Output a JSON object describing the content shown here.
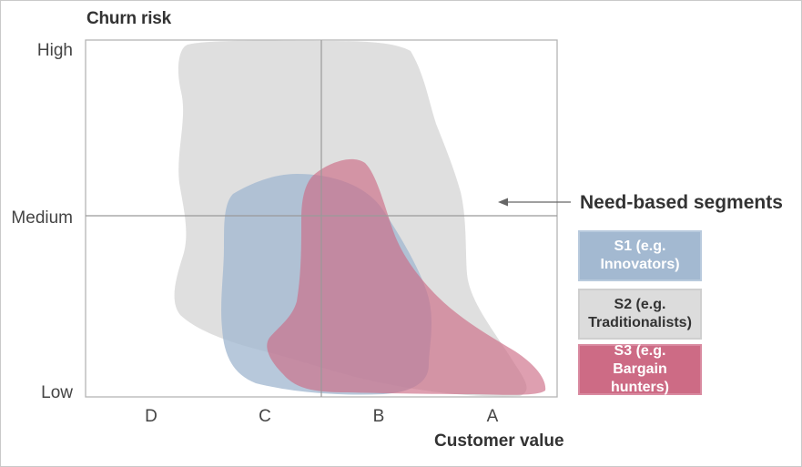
{
  "diagram": {
    "y_axis_title": "Churn risk",
    "y_labels": [
      "High",
      "Medium",
      "Low"
    ],
    "x_labels": [
      "D",
      "C",
      "B",
      "A"
    ],
    "x_axis_title": "Customer value",
    "annotation": "Need-based segments",
    "legend": [
      {
        "line1": "S1 (e.g.",
        "line2": "Innovators)",
        "color": "#a3b9d1"
      },
      {
        "line1": "S2 (e.g.",
        "line2": "Traditionalists)",
        "color": "#dcdcdc"
      },
      {
        "line1": "S3 (e.g. Bargain",
        "line2": "hunters)",
        "color": "#cd6b85"
      }
    ],
    "colors": {
      "s1": "#a3b9d1",
      "s2": "#dcdcdc",
      "s3": "#cd6b85",
      "axis": "#b5b5b5",
      "arrow": "#666666"
    }
  }
}
